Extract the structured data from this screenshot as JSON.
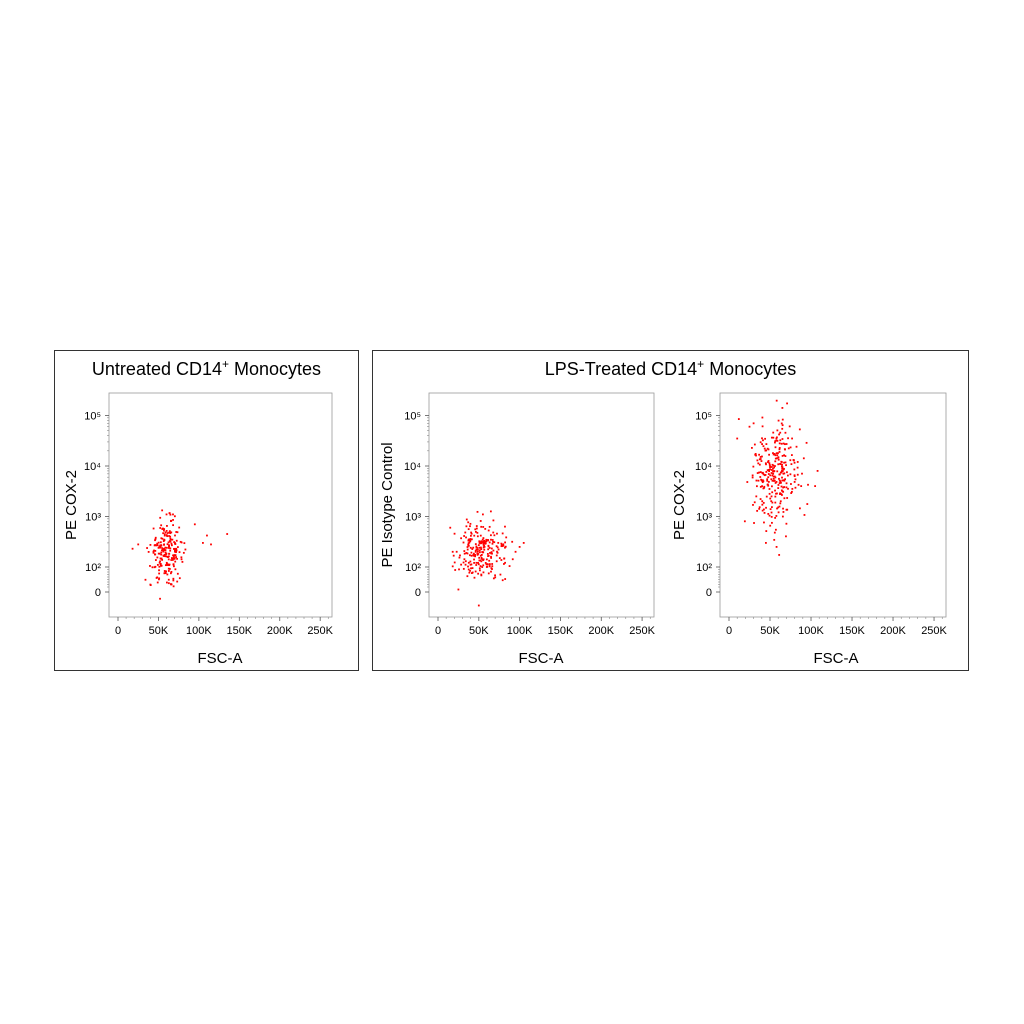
{
  "panels": [
    {
      "title_main": "Untreated CD14",
      "title_sup": "+",
      "title_rest": " Monocytes"
    },
    {
      "title_main": "LPS-Treated CD14",
      "title_sup": "+",
      "title_rest": " Monocytes"
    }
  ],
  "colors": {
    "points": "#ff0000",
    "frame": "#333333",
    "axis": "#555555",
    "background": "#ffffff"
  },
  "chart_data": [
    {
      "type": "scatter",
      "title": "",
      "xlabel": "FSC-A",
      "ylabel": "PE  COX-2",
      "xlim": [
        0,
        262144
      ],
      "xticks": [
        0,
        50000,
        100000,
        150000,
        200000,
        250000
      ],
      "xtick_labels": [
        "0",
        "50K",
        "100K",
        "150K",
        "200K",
        "250K"
      ],
      "yscale": "biexponential",
      "yticks": [
        0,
        100,
        1000,
        10000,
        100000
      ],
      "ytick_labels": [
        "0",
        "10²",
        "10³",
        "10⁴",
        "10⁵"
      ],
      "cluster": {
        "x_center": 60000,
        "x_spread": 10000,
        "y_center_log10": 2.3,
        "y_spread_log10": 0.3,
        "count": 220
      },
      "outliers": [
        {
          "x": 135000,
          "y": 450
        },
        {
          "x": 115000,
          "y": 280
        },
        {
          "x": 110000,
          "y": 420
        },
        {
          "x": 105000,
          "y": 300
        },
        {
          "x": 95000,
          "y": 700
        },
        {
          "x": 18000,
          "y": 230
        },
        {
          "x": 25000,
          "y": 280
        },
        {
          "x": 52000,
          "y": -30
        },
        {
          "x": 60000,
          "y": 1100
        },
        {
          "x": 68000,
          "y": 1100
        }
      ]
    },
    {
      "type": "scatter",
      "title": "",
      "xlabel": "FSC-A",
      "ylabel": "PE  Isotype Control",
      "xlim": [
        0,
        262144
      ],
      "xticks": [
        0,
        50000,
        100000,
        150000,
        200000,
        250000
      ],
      "xtick_labels": [
        "0",
        "50K",
        "100K",
        "150K",
        "200K",
        "250K"
      ],
      "yscale": "biexponential",
      "yticks": [
        0,
        100,
        1000,
        10000,
        100000
      ],
      "ytick_labels": [
        "0",
        "10²",
        "10³",
        "10⁴",
        "10⁵"
      ],
      "cluster": {
        "x_center": 55000,
        "x_spread": 15000,
        "y_center_log10": 2.3,
        "y_spread_log10": 0.3,
        "count": 240
      },
      "outliers": [
        {
          "x": 105000,
          "y": 300
        },
        {
          "x": 100000,
          "y": 250
        },
        {
          "x": 95000,
          "y": 200
        },
        {
          "x": 15000,
          "y": 600
        },
        {
          "x": 18000,
          "y": 200
        },
        {
          "x": 55000,
          "y": 1100
        },
        {
          "x": 50000,
          "y": -60
        },
        {
          "x": 25000,
          "y": 10
        }
      ]
    },
    {
      "type": "scatter",
      "title": "",
      "xlabel": "FSC-A",
      "ylabel": "PE  COX-2",
      "xlim": [
        0,
        262144
      ],
      "xticks": [
        0,
        50000,
        100000,
        150000,
        200000,
        250000
      ],
      "xtick_labels": [
        "0",
        "50K",
        "100K",
        "150K",
        "200K",
        "250K"
      ],
      "yscale": "biexponential",
      "yticks": [
        0,
        100,
        1000,
        10000,
        100000
      ],
      "ytick_labels": [
        "0",
        "10²",
        "10³",
        "10⁴",
        "10⁵"
      ],
      "cluster": {
        "x_center": 55000,
        "x_spread": 14000,
        "y_center_log10": 3.8,
        "y_spread_log10": 0.55,
        "count": 300
      },
      "outliers": [
        {
          "x": 108000,
          "y": 8000
        },
        {
          "x": 105000,
          "y": 4000
        },
        {
          "x": 88000,
          "y": 4000
        },
        {
          "x": 12000,
          "y": 85000
        },
        {
          "x": 30000,
          "y": 70000
        },
        {
          "x": 25000,
          "y": 60000
        },
        {
          "x": 10000,
          "y": 35000
        },
        {
          "x": 58000,
          "y": 250
        },
        {
          "x": 45000,
          "y": 300
        }
      ]
    }
  ]
}
